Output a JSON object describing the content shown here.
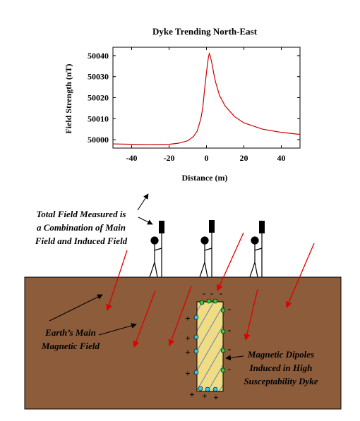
{
  "chart_data": {
    "type": "line",
    "title": "Dyke Trending North-East",
    "xlabel": "Distance (m)",
    "ylabel": "Field Strength (nT)",
    "x": [
      -50,
      -40,
      -30,
      -20,
      -15,
      -10,
      -7,
      -5,
      -3,
      -2,
      -1,
      0,
      1,
      1.5,
      2,
      3,
      4,
      5,
      7,
      10,
      15,
      20,
      30,
      40,
      50
    ],
    "values": [
      49998,
      49997.8,
      49997.7,
      49997.8,
      49998.3,
      49999.5,
      50001.5,
      50004,
      50010,
      50015,
      50024,
      50032,
      50039,
      50041,
      50040,
      50036,
      50031,
      50027,
      50021,
      50016,
      50011,
      50008,
      50005,
      50003.5,
      50002.5
    ],
    "color": "#cc0000",
    "xlim": [
      -50,
      50
    ],
    "xticks": [
      -40,
      -20,
      0,
      20,
      40
    ],
    "ylim": [
      49996,
      50044
    ],
    "yticks": [
      50000,
      50010,
      50020,
      50030,
      50040
    ]
  },
  "diagram": {
    "measured_label": [
      "Total Field Measured is",
      "a Combination of Main",
      "Field and Induced Field"
    ],
    "main_field_label": [
      "Earth’s Main",
      "Magnetic Field"
    ],
    "dipoles_label": [
      "Magnetic Dipoles",
      "Induced in High",
      "Susceptability Dyke"
    ],
    "minus_signs": [
      "-",
      "-",
      "-",
      "-",
      "-",
      "-",
      "-"
    ],
    "plus_signs": [
      "+",
      "+",
      "+",
      "+",
      "+",
      "+",
      "+"
    ]
  }
}
